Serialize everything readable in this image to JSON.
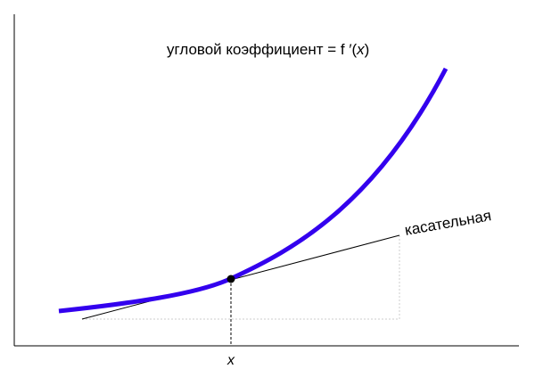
{
  "title_label": {
    "prefix": "угловой коэффициент = f ′(",
    "var": "x",
    "suffix": ")"
  },
  "tangent_label": "касательная",
  "x_axis_label": "x",
  "colors": {
    "curve": "#3300ee",
    "tangent": "#000000",
    "axes": "#000000",
    "point": "#000000",
    "guide_dotted": "#cccccc",
    "guide_dashed": "#000000"
  }
}
